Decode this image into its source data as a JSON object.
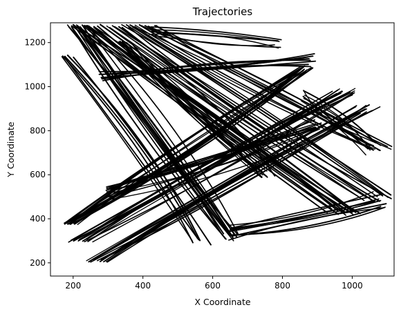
{
  "chart_data": {
    "type": "line",
    "title": "Trajectories",
    "xlabel": "X Coordinate",
    "ylabel": "Y Coordinate",
    "xlim": [
      135,
      1120
    ],
    "ylim": [
      140,
      1290
    ],
    "x_ticks": [
      200,
      400,
      600,
      800,
      1000
    ],
    "y_ticks": [
      200,
      400,
      600,
      800,
      1000,
      1200
    ],
    "grid": false,
    "legend": "none",
    "line_color": "#000000",
    "bundles": [
      {
        "from": [
          210,
          1275
        ],
        "to": [
          650,
          320
        ],
        "count": 16,
        "spread": [
          50,
          0
        ]
      },
      {
        "from": [
          240,
          1275
        ],
        "to": [
          980,
          430
        ],
        "count": 14,
        "spread": [
          80,
          0
        ]
      },
      {
        "from": [
          330,
          1275
        ],
        "to": [
          1070,
          490
        ],
        "count": 12,
        "spread": [
          90,
          0
        ]
      },
      {
        "from": [
          400,
          1275
        ],
        "to": [
          1080,
          720
        ],
        "count": 10,
        "spread": [
          70,
          0
        ]
      },
      {
        "from": [
          190,
          380
        ],
        "to": [
          860,
          1080
        ],
        "count": 16,
        "spread": [
          40,
          0
        ]
      },
      {
        "from": [
          220,
          300
        ],
        "to": [
          980,
          980
        ],
        "count": 14,
        "spread": [
          60,
          0
        ]
      },
      {
        "from": [
          270,
          210
        ],
        "to": [
          1040,
          900
        ],
        "count": 12,
        "spread": [
          60,
          0
        ]
      },
      {
        "from": [
          180,
          1140
        ],
        "to": [
          560,
          300
        ],
        "count": 6,
        "spread": [
          30,
          0
        ]
      },
      {
        "from": [
          280,
          1050
        ],
        "to": [
          880,
          1120
        ],
        "count": 8,
        "spread": [
          0,
          50
        ]
      },
      {
        "from": [
          420,
          1250
        ],
        "to": [
          780,
          1200
        ],
        "count": 6,
        "spread": [
          0,
          40
        ]
      },
      {
        "from": [
          650,
          340
        ],
        "to": [
          1080,
          480
        ],
        "count": 10,
        "spread": [
          0,
          60
        ]
      },
      {
        "from": [
          860,
          960
        ],
        "to": [
          1060,
          720
        ],
        "count": 6,
        "spread": [
          0,
          60
        ]
      },
      {
        "from": [
          300,
          520
        ],
        "to": [
          900,
          820
        ],
        "count": 10,
        "spread": [
          0,
          60
        ]
      },
      {
        "from": [
          350,
          1200
        ],
        "to": [
          750,
          600
        ],
        "count": 10,
        "spread": [
          50,
          0
        ]
      }
    ]
  }
}
